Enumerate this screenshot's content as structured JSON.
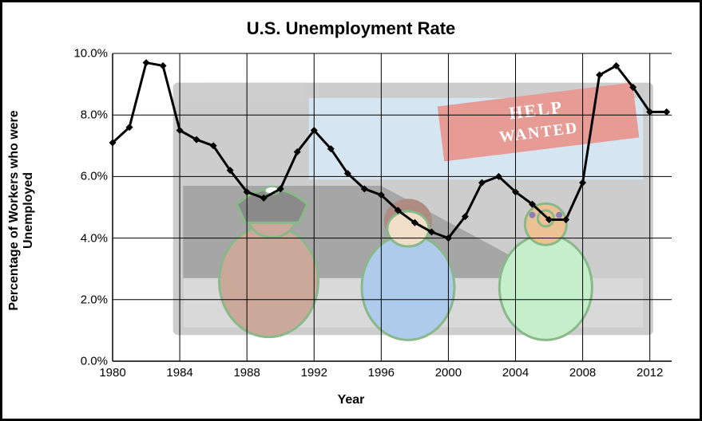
{
  "chart": {
    "type": "line",
    "title": "U.S. Unemployment Rate",
    "xlabel": "Year",
    "ylabel": "Percentage of Workers who were Unemployed",
    "title_fontsize": 22,
    "label_fontsize": 16,
    "tick_fontsize": 15,
    "background_color": "#ffffff",
    "border_color": "#000000",
    "grid_color": "#000000",
    "grid_line_width": 1,
    "line_color": "#000000",
    "line_width": 3,
    "marker": "diamond",
    "marker_size": 4.5,
    "marker_color": "#000000",
    "ymin": 0.0,
    "ymax": 10.0,
    "ytick_step": 2.0,
    "xmin_year": 1980,
    "xmax_year": 2012,
    "xtick_step": 4,
    "years": [
      1980,
      1981,
      1982,
      1983,
      1984,
      1985,
      1986,
      1987,
      1988,
      1989,
      1990,
      1991,
      1992,
      1993,
      1994,
      1995,
      1996,
      1997,
      1998,
      1999,
      2000,
      2001,
      2002,
      2003,
      2004,
      2005,
      2006,
      2007,
      2008,
      2009,
      2010,
      2011,
      2012,
      2013
    ],
    "values": [
      7.1,
      7.6,
      9.7,
      9.6,
      7.5,
      7.2,
      7.0,
      6.2,
      5.5,
      5.3,
      5.6,
      6.8,
      7.5,
      6.9,
      6.1,
      5.6,
      5.4,
      4.9,
      4.5,
      4.2,
      4.0,
      4.7,
      5.8,
      6.0,
      5.5,
      5.1,
      4.6,
      4.6,
      5.8,
      9.3,
      9.6,
      8.9,
      8.1,
      8.1
    ],
    "x_overshoot_units": 1.3,
    "bg_art": {
      "outer_fill": "#adadad",
      "window_fill": "#bcd5ea",
      "sign_fill": "#d8594f",
      "sign_text_color": "#ffffff",
      "sign_lines": [
        "HELP",
        "WANTED"
      ],
      "figure_outline": "#3b8a3b",
      "figure1_body": "#a87158",
      "figure1_hat": "#3d3d3d",
      "figure2_body": "#7aa9e0",
      "figure2_hair": "#7b3f2f",
      "figure3_body": "#9ee6a8",
      "figure3_head": "#e09a4e",
      "road_dark": "#6c6c6c",
      "road_light": "#c0c0c0",
      "opacity": 0.6
    }
  }
}
